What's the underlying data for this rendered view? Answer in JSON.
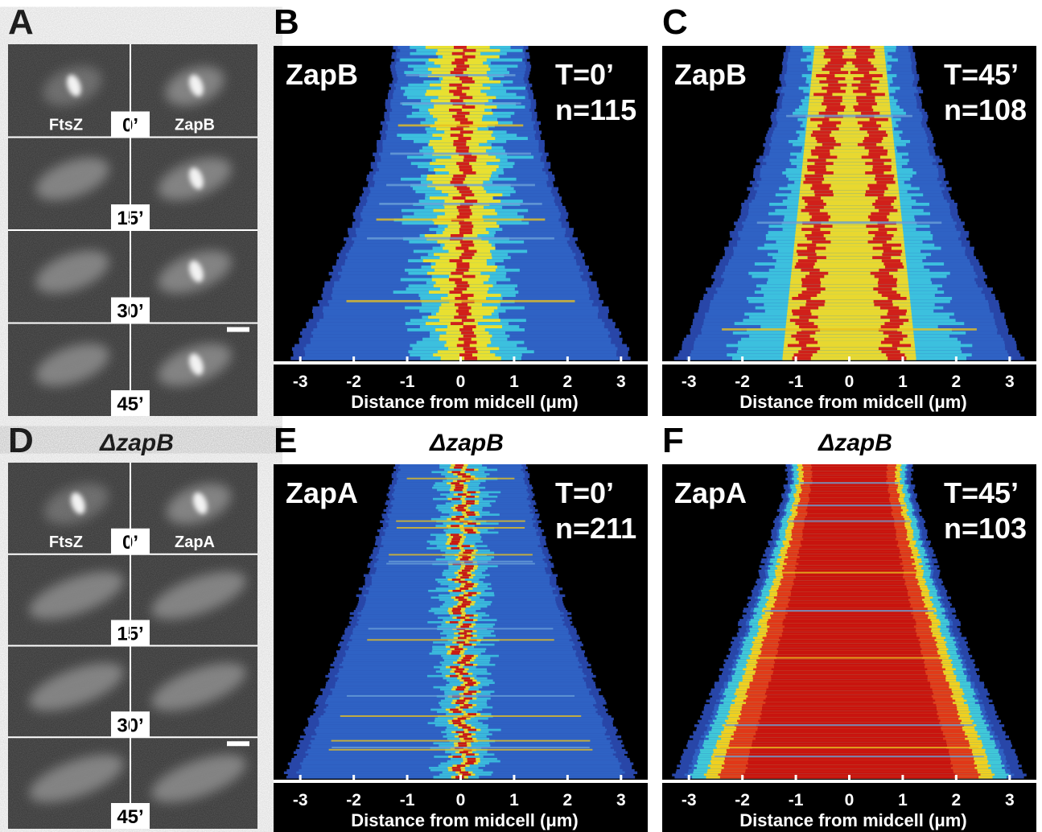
{
  "micrograph_panels": [
    {
      "letter": "A",
      "channels": [
        "FtsZ",
        "ZapB"
      ],
      "times": [
        "0’",
        "15’",
        "30’",
        "45’"
      ]
    },
    {
      "letter": "D",
      "title": "ΔzapB",
      "channels": [
        "FtsZ",
        "ZapA"
      ],
      "times": [
        "0’",
        "15’",
        "30’",
        "45’"
      ]
    }
  ],
  "demograph_panels": [
    {
      "letter": "B",
      "protein": "ZapB",
      "time": "T=0’",
      "count": "n=115",
      "xlim": [
        -3.5,
        3.5
      ],
      "xticks": [
        -3,
        -2,
        -1,
        0,
        1,
        2,
        3
      ],
      "xlabel": "Distance from midcell (μm)"
    },
    {
      "letter": "C",
      "protein": "ZapB",
      "time": "T=45’",
      "count": "n=108",
      "xlim": [
        -3.5,
        3.5
      ],
      "xticks": [
        -3,
        -2,
        -1,
        0,
        1,
        2,
        3
      ],
      "xlabel": "Distance from midcell (μm)"
    },
    {
      "letter": "E",
      "title": "ΔzapB",
      "protein": "ZapA",
      "time": "T=0’",
      "count": "n=211",
      "xlim": [
        -3.5,
        3.5
      ],
      "xticks": [
        -3,
        -2,
        -1,
        0,
        1,
        2,
        3
      ],
      "xlabel": "Distance from midcell (μm)"
    },
    {
      "letter": "F",
      "title": "ΔzapB",
      "protein": "ZapA",
      "time": "T=45’",
      "count": "n=103",
      "xlim": [
        -3.5,
        3.5
      ],
      "xticks": [
        -3,
        -2,
        -1,
        0,
        1,
        2,
        3
      ],
      "xlabel": "Distance from midcell (μm)"
    }
  ]
}
